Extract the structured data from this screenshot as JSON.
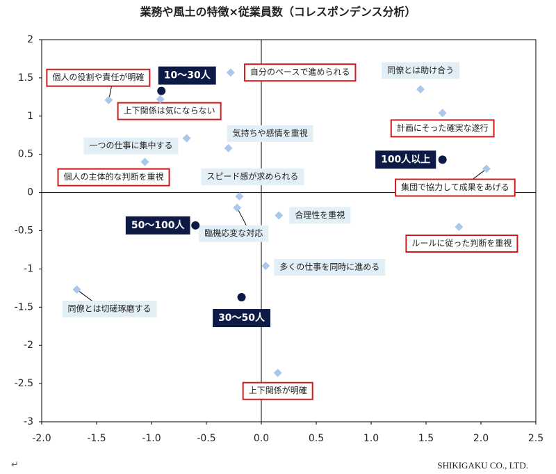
{
  "chart_data": {
    "type": "scatter",
    "title": "業務や風土の特徴×従業員数（コレスポンデンス分析）",
    "xlim": [
      -2,
      2.5
    ],
    "ylim": [
      -3,
      2
    ],
    "xticks": [
      {
        "value": -2,
        "label": "-2.0"
      },
      -1.5,
      {
        "value": -1,
        "label": "-1.0"
      },
      -0.5,
      {
        "value": 0,
        "label": "0.0"
      },
      0.5,
      {
        "value": 1,
        "label": "1.0"
      },
      1.5,
      {
        "value": 2,
        "label": "2.0"
      },
      2.5
    ],
    "yticks": [
      2,
      1.5,
      1,
      0.5,
      0,
      -0.5,
      -1,
      -1.5,
      -2,
      -2.5,
      -3
    ],
    "grid": false,
    "series": [
      {
        "color": "#a9c8ea",
        "marker": "diamond",
        "labels": [
          "個人の役割や責任が明確",
          "上下関係は気にならない",
          "自分のペースで進められる",
          "同僚とは助け合う",
          "計画にそった確実な遂行",
          "一つの仕事に集中する",
          "気持ちや感情を重視",
          "個人の主体的な判断を重視",
          "集団で協力して成果をあげる",
          "スピード感が求められる",
          "臨機応変な対応",
          "合理性を重視",
          "ルールに従った判断を重視",
          "多くの仕事を同時に進める",
          "同僚とは切磋琢磨する",
          "上下関係が明確"
        ],
        "highlight": [
          true,
          true,
          true,
          false,
          true,
          false,
          false,
          true,
          true,
          false,
          false,
          false,
          true,
          false,
          false,
          true
        ],
        "x": [
          -1.39,
          -0.92,
          -0.28,
          1.45,
          1.65,
          -0.68,
          -0.3,
          -1.06,
          2.05,
          -0.2,
          -0.22,
          0.16,
          1.8,
          0.04,
          -1.68,
          0.15
        ],
        "values": [
          1.21,
          1.22,
          1.57,
          1.35,
          1.04,
          0.71,
          0.58,
          0.4,
          0.31,
          -0.05,
          -0.2,
          -0.3,
          -0.45,
          -0.96,
          -1.27,
          -2.36
        ]
      },
      {
        "color": "#0d1a45",
        "marker": "circle",
        "labels": [
          "10〜30人",
          "100人以上",
          "50〜100人",
          "30〜50人"
        ],
        "x": [
          -0.91,
          1.65,
          -0.6,
          -0.18
        ],
        "values": [
          1.33,
          0.43,
          -0.43,
          -1.37
        ]
      }
    ],
    "footer_mark": "↵",
    "source": "SHIKIGAKU CO., LTD."
  }
}
